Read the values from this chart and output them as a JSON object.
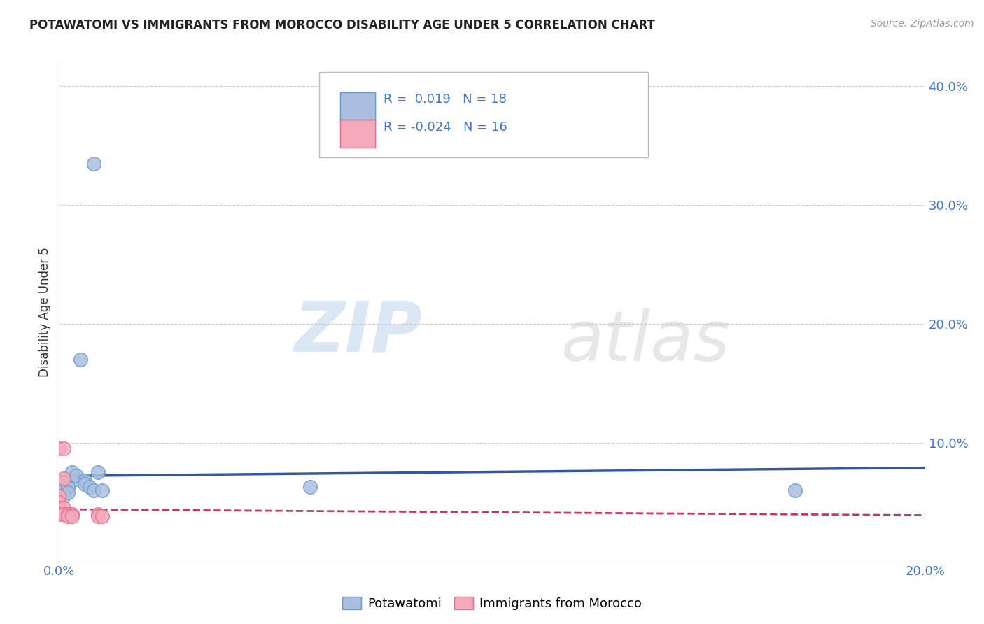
{
  "title": "POTAWATOMI VS IMMIGRANTS FROM MOROCCO DISABILITY AGE UNDER 5 CORRELATION CHART",
  "source": "Source: ZipAtlas.com",
  "ylabel_label": "Disability Age Under 5",
  "xlim": [
    0.0,
    0.2
  ],
  "ylim": [
    0.0,
    0.42
  ],
  "xtick_vals": [
    0.0,
    0.05,
    0.1,
    0.15,
    0.2
  ],
  "xtick_labels": [
    "0.0%",
    "",
    "",
    "",
    "20.0%"
  ],
  "ytick_vals": [
    0.0,
    0.1,
    0.2,
    0.3,
    0.4
  ],
  "ytick_labels": [
    "",
    "10.0%",
    "20.0%",
    "30.0%",
    "40.0%"
  ],
  "watermark_zip": "ZIP",
  "watermark_atlas": "atlas",
  "legend_blue_label": "Potawatomi",
  "legend_pink_label": "Immigrants from Morocco",
  "blue_R": "0.019",
  "blue_N": "18",
  "pink_R": "-0.024",
  "pink_N": "16",
  "blue_color": "#AABFE0",
  "pink_color": "#F4AABB",
  "blue_edge_color": "#6699CC",
  "pink_edge_color": "#E07090",
  "blue_line_color": "#3355AA",
  "pink_line_color": "#CC3366",
  "blue_points": [
    [
      0.008,
      0.335
    ],
    [
      0.005,
      0.17
    ],
    [
      0.0,
      0.065
    ],
    [
      0.001,
      0.06
    ],
    [
      0.003,
      0.068
    ],
    [
      0.002,
      0.062
    ],
    [
      0.001,
      0.055
    ],
    [
      0.002,
      0.058
    ],
    [
      0.003,
      0.075
    ],
    [
      0.004,
      0.072
    ],
    [
      0.006,
      0.068
    ],
    [
      0.006,
      0.065
    ],
    [
      0.007,
      0.063
    ],
    [
      0.008,
      0.06
    ],
    [
      0.009,
      0.075
    ],
    [
      0.01,
      0.06
    ],
    [
      0.058,
      0.063
    ],
    [
      0.17,
      0.06
    ]
  ],
  "pink_points": [
    [
      0.0,
      0.095
    ],
    [
      0.001,
      0.095
    ],
    [
      0.001,
      0.07
    ],
    [
      0.0,
      0.055
    ],
    [
      0.0,
      0.05
    ],
    [
      0.0,
      0.045
    ],
    [
      0.001,
      0.045
    ],
    [
      0.0,
      0.04
    ],
    [
      0.001,
      0.04
    ],
    [
      0.002,
      0.04
    ],
    [
      0.003,
      0.04
    ],
    [
      0.002,
      0.038
    ],
    [
      0.003,
      0.038
    ],
    [
      0.009,
      0.04
    ],
    [
      0.009,
      0.038
    ],
    [
      0.01,
      0.038
    ]
  ],
  "blue_trendline_x": [
    0.0,
    0.2
  ],
  "blue_trendline_y": [
    0.072,
    0.079
  ],
  "pink_trendline_x": [
    0.0,
    0.2
  ],
  "pink_trendline_y": [
    0.044,
    0.039
  ],
  "background_color": "#FFFFFF",
  "grid_color": "#CCCCCC",
  "tick_color": "#4477CC",
  "title_color": "#222222",
  "source_color": "#999999",
  "ylabel_color": "#333333"
}
